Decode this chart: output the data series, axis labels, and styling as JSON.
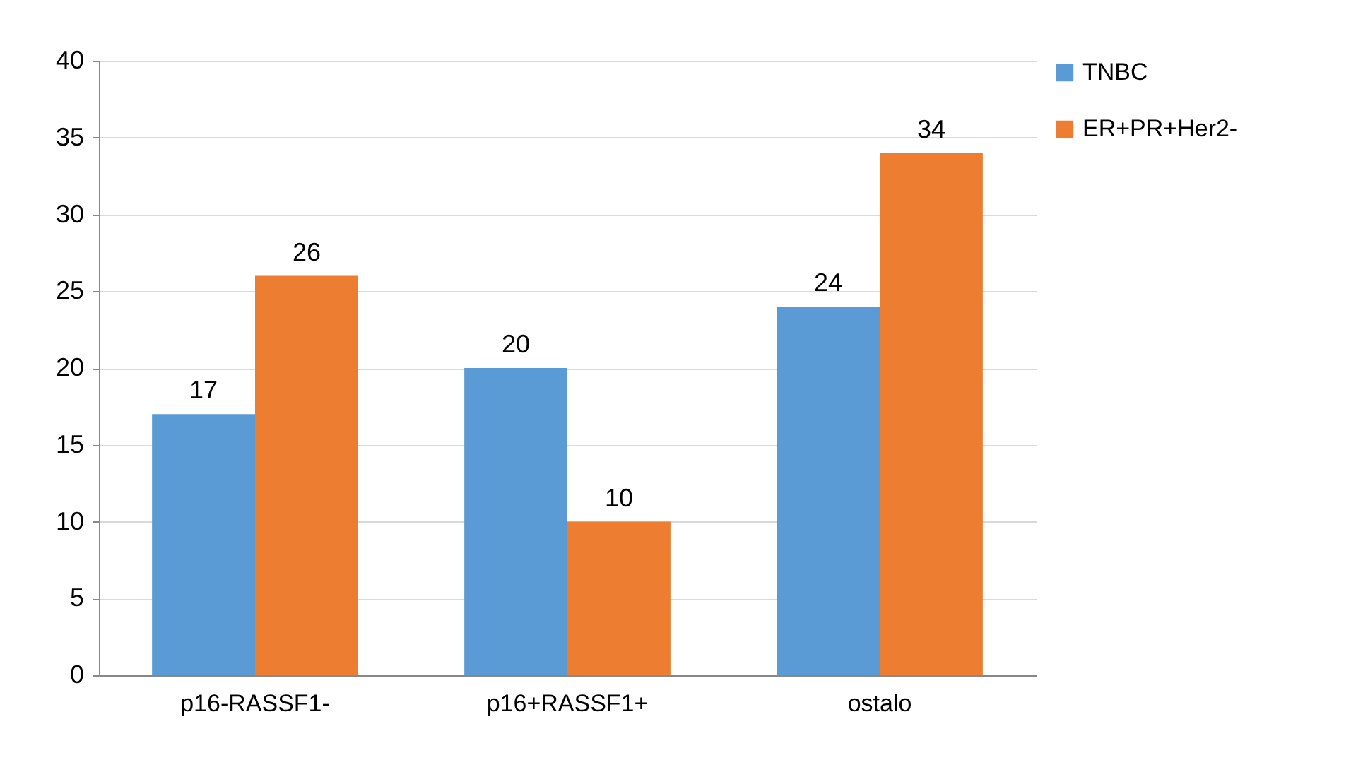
{
  "chart_data": {
    "type": "bar",
    "categories": [
      "p16-RASSF1-",
      "p16+RASSF1+",
      "ostalo"
    ],
    "series": [
      {
        "name": "TNBC",
        "color": "#5b9bd5",
        "values": [
          17,
          20,
          24
        ]
      },
      {
        "name": "ER+PR+Her2-",
        "color": "#ed7d31",
        "values": [
          26,
          10,
          34
        ]
      }
    ],
    "ylim": [
      0,
      40
    ],
    "yticks": [
      0,
      5,
      10,
      15,
      20,
      25,
      30,
      35,
      40
    ],
    "grid": "y",
    "legend": "right",
    "data_labels": true
  }
}
